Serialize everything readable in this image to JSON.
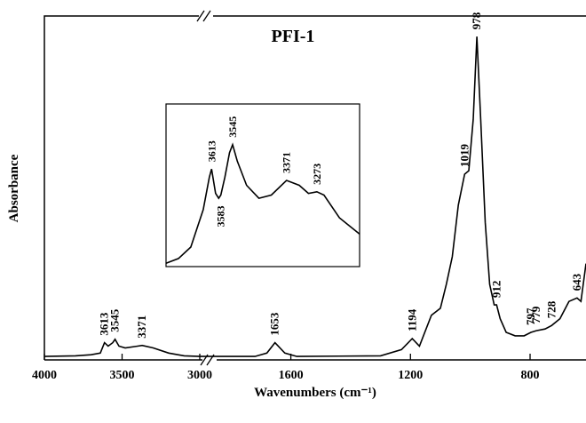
{
  "chart_data": [
    {
      "type": "line",
      "title": "PFI-1",
      "xlabel": "Wavenumbers (cm⁻¹)",
      "ylabel": "Absorbance",
      "color": "#000000",
      "x_segments": [
        {
          "xlim": [
            4000,
            2960
          ],
          "xticks": [
            4000,
            3500,
            3000
          ]
        },
        {
          "xlim": [
            1860,
            613
          ],
          "xticks": [
            1600,
            1200,
            800
          ]
        }
      ],
      "ylim": [
        0,
        1
      ],
      "x": [
        4000,
        3800,
        3700,
        3640,
        3613,
        3590,
        3560,
        3545,
        3520,
        3480,
        3400,
        3371,
        3300,
        3200,
        3100,
        3000,
        2960,
        1860,
        1720,
        1680,
        1653,
        1620,
        1580,
        1300,
        1230,
        1194,
        1170,
        1130,
        1100,
        1080,
        1060,
        1040,
        1019,
        1005,
        990,
        978,
        965,
        950,
        935,
        920,
        912,
        900,
        880,
        850,
        820,
        797,
        779,
        750,
        728,
        700,
        670,
        643,
        630,
        613
      ],
      "values": [
        0.01,
        0.012,
        0.015,
        0.02,
        0.05,
        0.04,
        0.05,
        0.06,
        0.04,
        0.035,
        0.04,
        0.042,
        0.035,
        0.02,
        0.012,
        0.01,
        0.01,
        0.01,
        0.01,
        0.02,
        0.05,
        0.02,
        0.01,
        0.012,
        0.03,
        0.062,
        0.04,
        0.13,
        0.15,
        0.22,
        0.3,
        0.45,
        0.54,
        0.55,
        0.7,
        0.94,
        0.7,
        0.4,
        0.22,
        0.16,
        0.16,
        0.12,
        0.08,
        0.07,
        0.07,
        0.08,
        0.085,
        0.09,
        0.1,
        0.12,
        0.17,
        0.18,
        0.17,
        0.28
      ],
      "peaks": [
        3613,
        3545,
        3371,
        1653,
        1194,
        1019,
        978,
        912,
        797,
        779,
        728,
        643
      ]
    },
    {
      "type": "line",
      "color": "#000000",
      "xlim": [
        3760,
        3135
      ],
      "ylim": [
        0,
        1
      ],
      "x": [
        3760,
        3720,
        3680,
        3640,
        3620,
        3613,
        3600,
        3590,
        3583,
        3570,
        3555,
        3545,
        3530,
        3500,
        3460,
        3420,
        3371,
        3330,
        3300,
        3273,
        3250,
        3200,
        3135
      ],
      "values": [
        0.02,
        0.05,
        0.12,
        0.35,
        0.55,
        0.6,
        0.45,
        0.42,
        0.44,
        0.55,
        0.7,
        0.75,
        0.65,
        0.5,
        0.42,
        0.44,
        0.53,
        0.5,
        0.45,
        0.46,
        0.44,
        0.3,
        0.2
      ],
      "peaks": [
        3613,
        3583,
        3545,
        3371,
        3273
      ]
    }
  ]
}
